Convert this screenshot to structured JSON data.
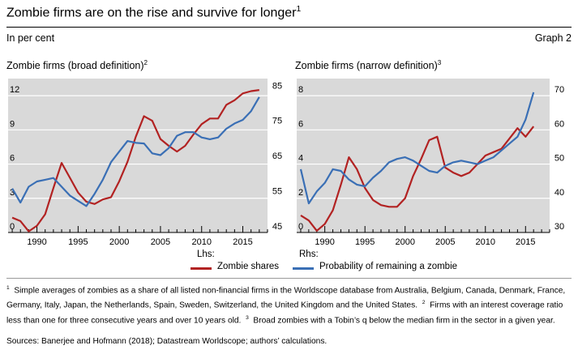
{
  "title": "Zombie firms are on the rise and survive for longer",
  "title_note": "1",
  "subtitle": "In per cent",
  "graph_label": "Graph 2",
  "legend": {
    "lhs_label": "Lhs:",
    "rhs_label": "Rhs:",
    "series1": "Zombie shares",
    "series2": "Probability of remaining a zombie",
    "color1": "#b22222",
    "color2": "#3a6fb5"
  },
  "footnotes": {
    "note1_mark": "1",
    "note1": "Simple averages of zombies as a share of all listed non-financial firms in the Worldscope database from Australia, Belgium, Canada, Denmark, France, Germany, Italy, Japan, the Netherlands, Spain, Sweden, Switzerland, the United Kingdom and the United States.",
    "note2_mark": "2",
    "note2": "Firms with an interest coverage ratio less than one for three consecutive years and over 10 years old.",
    "note3_mark": "3",
    "note3": "Broad zombies with a Tobin’s q below the median firm in the sector in a given year."
  },
  "sources": "Sources: Banerjee and Hofmann (2018); Datastream Worldscope; authors’ calculations.",
  "chart_data": [
    {
      "type": "line",
      "title": "Zombie firms (broad definition)",
      "title_note": "2",
      "x_range": [
        1986.5,
        2018
      ],
      "x_ticks": [
        1990,
        1995,
        2000,
        2005,
        2010,
        2015
      ],
      "x_tick_labels": [
        "1990",
        "1995",
        "2000",
        "2005",
        "2010",
        "2015"
      ],
      "ylim_left": [
        0,
        13.5
      ],
      "yticks_left": [
        0,
        3,
        6,
        9,
        12
      ],
      "ytick_labels_left": [
        "0",
        "3",
        "6",
        "9",
        "12"
      ],
      "ylim_right": [
        45,
        88.75
      ],
      "yticks_right": [
        45,
        55,
        65,
        75,
        85
      ],
      "ytick_labels_right": [
        "45",
        "55",
        "65",
        "75",
        "85"
      ],
      "series": [
        {
          "name": "Zombie shares",
          "axis": "left",
          "x": [
            1987,
            1988,
            1989,
            1990,
            1991,
            1992,
            1993,
            1994,
            1995,
            1996,
            1997,
            1998,
            1999,
            2000,
            2001,
            2002,
            2003,
            2004,
            2005,
            2006,
            2007,
            2008,
            2009,
            2010,
            2011,
            2012,
            2013,
            2014,
            2015,
            2016,
            2017
          ],
          "values": [
            1.3,
            1.0,
            0.1,
            0.6,
            1.6,
            3.9,
            6.1,
            4.8,
            3.5,
            2.7,
            2.5,
            2.9,
            3.1,
            4.5,
            6.2,
            8.4,
            10.2,
            9.8,
            8.2,
            7.6,
            7.1,
            7.6,
            8.6,
            9.5,
            10.0,
            10.0,
            11.2,
            11.6,
            12.2,
            12.4,
            12.5
          ]
        },
        {
          "name": "Probability of remaining a zombie",
          "axis": "right",
          "x": [
            1987,
            1988,
            1989,
            1990,
            1991,
            1992,
            1993,
            1994,
            1995,
            1996,
            1997,
            1998,
            1999,
            2000,
            2001,
            2002,
            2003,
            2004,
            2005,
            2006,
            2007,
            2008,
            2009,
            2010,
            2011,
            2012,
            2013,
            2014,
            2015,
            2016,
            2017
          ],
          "values": [
            57.5,
            53.5,
            58.0,
            59.5,
            60.0,
            60.5,
            58.0,
            55.5,
            54.0,
            52.5,
            56.0,
            60.0,
            65.0,
            68.0,
            71.0,
            70.5,
            70.3,
            67.5,
            67.0,
            69.0,
            72.5,
            73.5,
            73.5,
            72.0,
            71.5,
            72.0,
            74.5,
            76.0,
            77.0,
            79.5,
            83.5
          ]
        }
      ]
    },
    {
      "type": "line",
      "title": "Zombie firms (narrow definition)",
      "title_note": "3",
      "x_range": [
        1986.5,
        2018
      ],
      "x_ticks": [
        1990,
        1995,
        2000,
        2005,
        2010,
        2015
      ],
      "x_tick_labels": [
        "1990",
        "1995",
        "2000",
        "2005",
        "2010",
        "2015"
      ],
      "ylim_left": [
        0,
        9
      ],
      "yticks_left": [
        0,
        2,
        4,
        6,
        8
      ],
      "ytick_labels_left": [
        "0",
        "2",
        "4",
        "6",
        "8"
      ],
      "ylim_right": [
        30,
        75
      ],
      "yticks_right": [
        30,
        40,
        50,
        60,
        70
      ],
      "ytick_labels_right": [
        "30",
        "40",
        "50",
        "60",
        "70"
      ],
      "series": [
        {
          "name": "Zombie shares",
          "axis": "left",
          "x": [
            1987,
            1988,
            1989,
            1990,
            1991,
            1992,
            1993,
            1994,
            1995,
            1996,
            1997,
            1998,
            1999,
            2000,
            2001,
            2002,
            2003,
            2004,
            2005,
            2006,
            2007,
            2008,
            2009,
            2010,
            2011,
            2012,
            2013,
            2014,
            2015,
            2016
          ],
          "values": [
            1.0,
            0.7,
            0.1,
            0.5,
            1.3,
            2.8,
            4.4,
            3.7,
            2.6,
            1.9,
            1.6,
            1.5,
            1.5,
            2.0,
            3.3,
            4.3,
            5.4,
            5.6,
            3.8,
            3.5,
            3.3,
            3.5,
            4.0,
            4.5,
            4.7,
            4.9,
            5.5,
            6.1,
            5.6,
            6.2
          ]
        },
        {
          "name": "Probability of remaining a zombie",
          "axis": "right",
          "x": [
            1987,
            1988,
            1989,
            1990,
            1991,
            1992,
            1993,
            1994,
            1995,
            1996,
            1997,
            1998,
            1999,
            2000,
            2001,
            2002,
            2003,
            2004,
            2005,
            2006,
            2007,
            2008,
            2009,
            2010,
            2011,
            2012,
            2013,
            2014,
            2015,
            2016
          ],
          "values": [
            48.5,
            38.5,
            42.0,
            44.5,
            48.5,
            48.0,
            45.5,
            44.0,
            43.5,
            46.0,
            48.0,
            50.5,
            51.5,
            52.0,
            51.0,
            49.5,
            48.0,
            47.5,
            49.5,
            50.5,
            51.0,
            50.5,
            50.0,
            51.0,
            52.0,
            54.0,
            56.0,
            58.0,
            63.0,
            71.0
          ]
        }
      ]
    }
  ]
}
